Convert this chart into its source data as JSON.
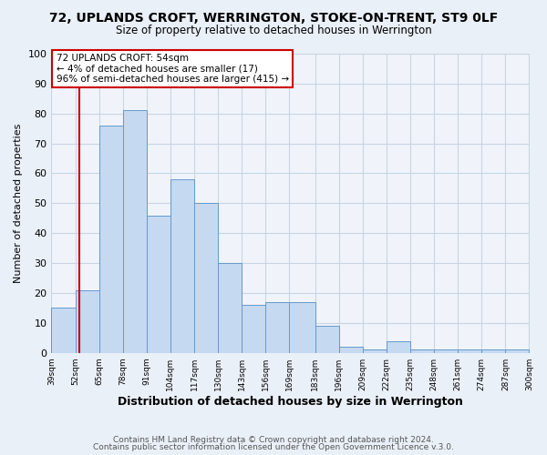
{
  "title": "72, UPLANDS CROFT, WERRINGTON, STOKE-ON-TRENT, ST9 0LF",
  "subtitle": "Size of property relative to detached houses in Werrington",
  "xlabel": "Distribution of detached houses by size in Werrington",
  "ylabel": "Number of detached properties",
  "bar_values": [
    15,
    21,
    76,
    81,
    46,
    58,
    50,
    30,
    16,
    17,
    17,
    9,
    2,
    1,
    4,
    1,
    1,
    1,
    1,
    1
  ],
  "bin_edges": [
    39,
    52,
    65,
    78,
    91,
    104,
    117,
    130,
    143,
    156,
    169,
    183,
    196,
    209,
    222,
    235,
    248,
    261,
    274,
    287,
    300
  ],
  "tick_labels": [
    "39sqm",
    "52sqm",
    "65sqm",
    "78sqm",
    "91sqm",
    "104sqm",
    "117sqm",
    "130sqm",
    "143sqm",
    "156sqm",
    "169sqm",
    "183sqm",
    "196sqm",
    "209sqm",
    "222sqm",
    "235sqm",
    "248sqm",
    "261sqm",
    "274sqm",
    "287sqm",
    "300sqm"
  ],
  "bar_color": "#c5d9f0",
  "bar_edge_color": "#6699cc",
  "vline_x": 54,
  "vline_color": "#cc0000",
  "ylim": [
    0,
    100
  ],
  "yticks": [
    0,
    10,
    20,
    30,
    40,
    50,
    60,
    70,
    80,
    90,
    100
  ],
  "annotation_title": "72 UPLANDS CROFT: 54sqm",
  "annotation_line1": "← 4% of detached houses are smaller (17)",
  "annotation_line2": "96% of semi-detached houses are larger (415) →",
  "annotation_box_color": "#ffffff",
  "annotation_box_edge": "#cc0000",
  "footer1": "Contains HM Land Registry data © Crown copyright and database right 2024.",
  "footer2": "Contains public sector information licensed under the Open Government Licence v.3.0.",
  "bg_color": "#eaf0f8",
  "plot_bg_color": "#f0f4fa",
  "grid_color": "#c8d4e4"
}
